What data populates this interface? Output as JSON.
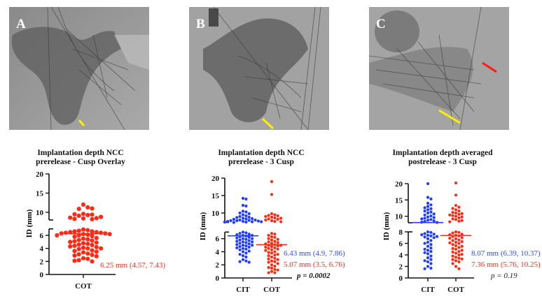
{
  "panels": [
    {
      "label": "A",
      "markers": [
        {
          "color": "#ffee00"
        }
      ]
    },
    {
      "label": "B",
      "markers": [
        {
          "color": "#ffee00"
        }
      ]
    },
    {
      "label": "C",
      "markers": [
        {
          "color": "#ffee00"
        },
        {
          "color": "#ff1a10"
        }
      ]
    }
  ],
  "colors": {
    "CIT": "#1f3cff",
    "COT": "#ff2a14"
  },
  "chart_data": [
    {
      "type": "scatter",
      "title_line1": "Implantation depth NCC",
      "title_line2": "prerelease - Cusp Overlay",
      "ylabel": "ID (mm)",
      "categories": [
        "COT"
      ],
      "y_axis": {
        "broken": true,
        "lower_ticks": [
          0,
          2,
          4,
          6
        ],
        "upper_ticks": [
          10,
          15,
          20
        ],
        "range": [
          0,
          20
        ]
      },
      "series": [
        {
          "name": "COT",
          "median": 6.25,
          "values": [
            12,
            11.3,
            10.9,
            11,
            9.6,
            9.3,
            9.1,
            9.4,
            9.5,
            8.5,
            8.6,
            8.4,
            8.3,
            8.8,
            8.2,
            6.9,
            6.8,
            6.7,
            6.6,
            6.6,
            6.5,
            6.5,
            6.4,
            6.4,
            6.3,
            6.3,
            6.2,
            6.2,
            6.1,
            6,
            6,
            5.9,
            5.8,
            5.6,
            5.5,
            5.4,
            5.3,
            5.2,
            5.1,
            5,
            4.9,
            4.8,
            4.7,
            4.6,
            4.5,
            4.4,
            4.3,
            4.2,
            4.1,
            4,
            4,
            3.9,
            3.7,
            3.6,
            3.5,
            3.4,
            3.2,
            3.1,
            3,
            2.9,
            2.8,
            2.5,
            2.4,
            2.2,
            2,
            2.1
          ]
        }
      ],
      "stats": [
        {
          "text": "6.25 mm (4.57, 7.43)",
          "color": "red"
        }
      ]
    },
    {
      "type": "scatter",
      "title_line1": "Implantation depth NCC",
      "title_line2": "prerelease - 3 Cusp",
      "ylabel": "ID (mm)",
      "categories": [
        "CIT",
        "COT"
      ],
      "y_axis": {
        "broken": true,
        "lower_ticks": [
          0,
          2,
          4,
          6
        ],
        "upper_ticks": [
          10,
          15,
          20
        ],
        "range": [
          0,
          20
        ]
      },
      "series": [
        {
          "name": "CIT",
          "median": 6.43,
          "values": [
            14.2,
            14,
            12.2,
            12,
            10.5,
            10.3,
            10,
            9.8,
            9.5,
            9.2,
            9,
            8.8,
            8.7,
            8.5,
            8.4,
            8.3,
            8.2,
            8,
            8,
            7.9,
            7.8,
            7.8,
            7.7,
            7.6,
            7.6,
            7.5,
            7.5,
            7.4,
            7.4,
            7.3,
            7,
            6.9,
            6.8,
            6.7,
            6.6,
            6.5,
            6.5,
            6.4,
            6.3,
            6.2,
            6.1,
            6,
            6,
            5.9,
            5.8,
            5.7,
            5.6,
            5.5,
            5.5,
            5.4,
            5.3,
            5.2,
            5.1,
            5,
            5,
            4.9,
            4.8,
            4.7,
            4.6,
            4.5,
            4.4,
            4.3,
            4.1,
            4,
            3.8,
            3.6,
            3.4,
            3.2,
            2.8,
            2.6,
            2.5,
            2.4
          ]
        },
        {
          "name": "COT",
          "median": 5.07,
          "values": [
            19,
            15.3,
            9.8,
            9.5,
            9.3,
            9.2,
            9,
            8.8,
            8.6,
            8.5,
            8.3,
            8.2,
            8,
            7.8,
            7.6,
            7.5,
            6.8,
            6.7,
            6.5,
            6.3,
            6.2,
            6,
            5.9,
            5.8,
            5.6,
            5.5,
            5.4,
            5.3,
            5.2,
            5.1,
            5,
            5,
            4.9,
            4.8,
            4.7,
            4.6,
            4.5,
            4.4,
            4.3,
            4.2,
            4,
            3.9,
            3.8,
            3.6,
            3.5,
            3.4,
            3.2,
            3,
            2.9,
            2.8,
            2.6,
            2.5,
            2.4,
            2.2,
            2,
            1.8,
            1.6,
            1.5,
            1.3,
            1.2,
            1,
            0.8,
            0.8
          ]
        }
      ],
      "stats": [
        {
          "text": "6.43 mm  (4.9, 7.86)",
          "color": "blue"
        },
        {
          "text": "5.07 mm (3.5, 6.76)",
          "color": "red"
        },
        {
          "text": "p = 0.0002",
          "color": "pv"
        }
      ]
    },
    {
      "type": "scatter",
      "title_line1": "Implantation depth averaged",
      "title_line2": "postrelease - 3 Cusp",
      "ylabel": "ID (mm)",
      "categories": [
        "CIT",
        "COT"
      ],
      "y_axis": {
        "broken": true,
        "lower_ticks": [
          0,
          2,
          4,
          6,
          8
        ],
        "upper_ticks": [
          10,
          15,
          20
        ],
        "range": [
          0,
          20
        ]
      },
      "series": [
        {
          "name": "CIT",
          "median": 8.07,
          "values": [
            20,
            15.8,
            15.3,
            14,
            13.5,
            13,
            12.6,
            12.3,
            12,
            11.6,
            11.3,
            11,
            10.7,
            10.4,
            10.1,
            9.8,
            9.6,
            9.4,
            9.2,
            9,
            8.8,
            8.6,
            8.4,
            8.2,
            8.1,
            8,
            7.9,
            7.7,
            7.6,
            7.5,
            7.4,
            7.3,
            7.2,
            7.1,
            7,
            6.8,
            6.5,
            6.2,
            6,
            5.8,
            5.5,
            5.2,
            5,
            4.8,
            4.6,
            4.4,
            4.2,
            3.8,
            3.5,
            3.2,
            3,
            2.8,
            2.5,
            2,
            1.7,
            1.6
          ]
        },
        {
          "name": "COT",
          "median": 7.36,
          "values": [
            20.2,
            16.5,
            13.3,
            12.8,
            12.4,
            12,
            11.6,
            11.2,
            11,
            10.8,
            10.6,
            10.4,
            10.2,
            10,
            9.8,
            9.5,
            9.2,
            9,
            8.7,
            8.5,
            8.3,
            8,
            7.9,
            7.8,
            7.6,
            7.5,
            7.4,
            7.3,
            7.2,
            7,
            6.9,
            6.8,
            6.6,
            6.5,
            6.3,
            6.2,
            6.1,
            6,
            5.8,
            5.6,
            5.5,
            5.3,
            5.1,
            5,
            4.8,
            4.6,
            4.5,
            4.3,
            4.1,
            4,
            3.8,
            3.6,
            3.4,
            3.3,
            3.2,
            3,
            2.8,
            2.5,
            2,
            1.6
          ]
        }
      ],
      "stats": [
        {
          "text": "8.07 mm (6.39, 10.37)",
          "color": "blue"
        },
        {
          "text": "7.36 mm (5.76, 10.25)",
          "color": "red"
        },
        {
          "text": "p = 0.19",
          "color": "pvi"
        }
      ]
    }
  ]
}
